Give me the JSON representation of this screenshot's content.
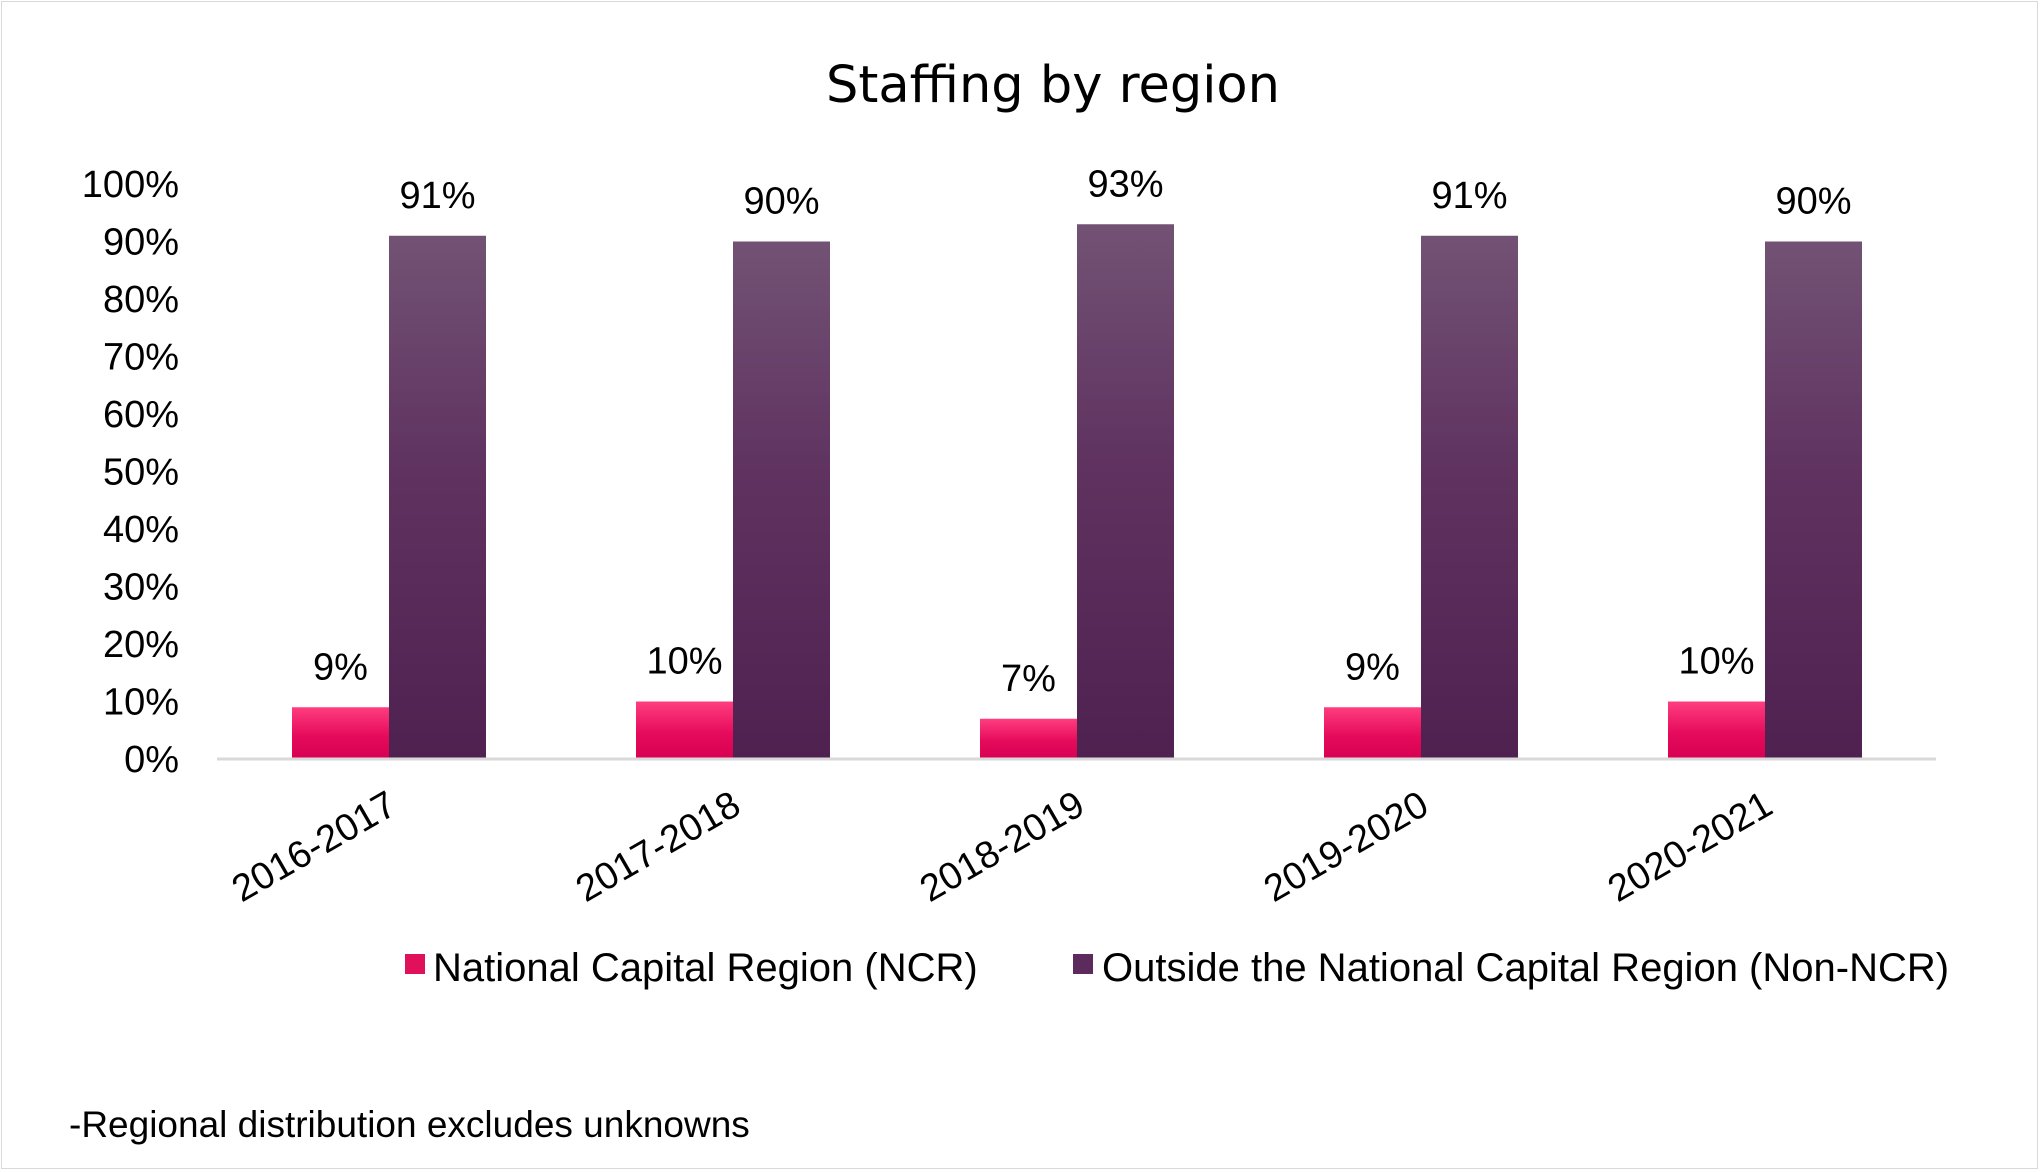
{
  "chart_data": {
    "type": "bar",
    "title": "Staffing by region",
    "categories": [
      "2016-2017",
      "2017-2018",
      "2018-2019",
      "2019-2020",
      "2020-2021"
    ],
    "series": [
      {
        "name": "National Capital Region (NCR)",
        "values": [
          9,
          10,
          7,
          9,
          10
        ],
        "labels": [
          "9%",
          "10%",
          "7%",
          "9%",
          "10%"
        ],
        "color": "#e0105a"
      },
      {
        "name": "Outside the National Capital Region (Non-NCR)",
        "values": [
          91,
          90,
          93,
          91,
          90
        ],
        "labels": [
          "91%",
          "90%",
          "93%",
          "91%",
          "90%"
        ],
        "color": "#5c2a5c"
      }
    ],
    "yticks": [
      "0%",
      "10%",
      "20%",
      "30%",
      "40%",
      "50%",
      "60%",
      "70%",
      "80%",
      "90%",
      "100%"
    ],
    "ylim": [
      0,
      100
    ],
    "grid": false,
    "legend_position": "bottom",
    "footnote": "-Regional distribution excludes unknowns"
  }
}
